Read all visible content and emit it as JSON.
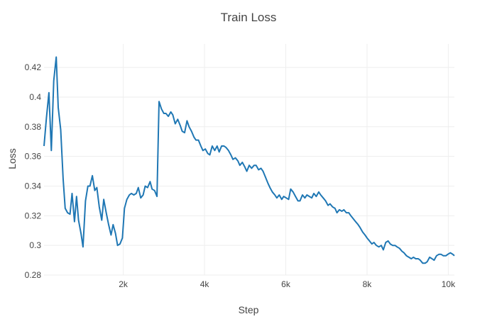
{
  "chart_data": {
    "type": "line",
    "title": "Train Loss",
    "xlabel": "Step",
    "ylabel": "Loss",
    "xlim": [
      50,
      10150
    ],
    "ylim": [
      0.28,
      0.432
    ],
    "grid": true,
    "x_ticks": [
      {
        "value": 2000,
        "label": "2k"
      },
      {
        "value": 4000,
        "label": "4k"
      },
      {
        "value": 6000,
        "label": "6k"
      },
      {
        "value": 8000,
        "label": "8k"
      },
      {
        "value": 10000,
        "label": "10k"
      }
    ],
    "y_ticks": [
      {
        "value": 0.28,
        "label": "0.28"
      },
      {
        "value": 0.3,
        "label": "0.3"
      },
      {
        "value": 0.32,
        "label": "0.32"
      },
      {
        "value": 0.34,
        "label": "0.34"
      },
      {
        "value": 0.36,
        "label": "0.36"
      },
      {
        "value": 0.38,
        "label": "0.38"
      },
      {
        "value": 0.4,
        "label": "0.4"
      },
      {
        "value": 0.42,
        "label": "0.42"
      }
    ],
    "series": [
      {
        "color": "#1f77b4",
        "points": [
          [
            50,
            0.367
          ],
          [
            110,
            0.386
          ],
          [
            170,
            0.403
          ],
          [
            230,
            0.364
          ],
          [
            290,
            0.411
          ],
          [
            350,
            0.427
          ],
          [
            400,
            0.393
          ],
          [
            460,
            0.378
          ],
          [
            520,
            0.345
          ],
          [
            570,
            0.325
          ],
          [
            630,
            0.322
          ],
          [
            690,
            0.321
          ],
          [
            740,
            0.335
          ],
          [
            800,
            0.316
          ],
          [
            850,
            0.333
          ],
          [
            900,
            0.317
          ],
          [
            960,
            0.308
          ],
          [
            1010,
            0.299
          ],
          [
            1070,
            0.33
          ],
          [
            1130,
            0.34
          ],
          [
            1180,
            0.34
          ],
          [
            1240,
            0.347
          ],
          [
            1300,
            0.337
          ],
          [
            1350,
            0.339
          ],
          [
            1410,
            0.326
          ],
          [
            1470,
            0.317
          ],
          [
            1520,
            0.331
          ],
          [
            1580,
            0.322
          ],
          [
            1640,
            0.314
          ],
          [
            1700,
            0.307
          ],
          [
            1750,
            0.314
          ],
          [
            1810,
            0.308
          ],
          [
            1860,
            0.3
          ],
          [
            1920,
            0.301
          ],
          [
            1980,
            0.305
          ],
          [
            2030,
            0.325
          ],
          [
            2090,
            0.331
          ],
          [
            2150,
            0.334
          ],
          [
            2200,
            0.335
          ],
          [
            2260,
            0.334
          ],
          [
            2320,
            0.335
          ],
          [
            2370,
            0.339
          ],
          [
            2430,
            0.332
          ],
          [
            2490,
            0.334
          ],
          [
            2540,
            0.34
          ],
          [
            2600,
            0.339
          ],
          [
            2660,
            0.343
          ],
          [
            2710,
            0.338
          ],
          [
            2770,
            0.337
          ],
          [
            2830,
            0.333
          ],
          [
            2880,
            0.397
          ],
          [
            2940,
            0.392
          ],
          [
            3000,
            0.389
          ],
          [
            3050,
            0.389
          ],
          [
            3110,
            0.387
          ],
          [
            3170,
            0.39
          ],
          [
            3220,
            0.388
          ],
          [
            3280,
            0.382
          ],
          [
            3340,
            0.385
          ],
          [
            3400,
            0.381
          ],
          [
            3450,
            0.377
          ],
          [
            3510,
            0.376
          ],
          [
            3570,
            0.384
          ],
          [
            3620,
            0.38
          ],
          [
            3680,
            0.377
          ],
          [
            3740,
            0.373
          ],
          [
            3790,
            0.371
          ],
          [
            3850,
            0.371
          ],
          [
            3910,
            0.367
          ],
          [
            3960,
            0.364
          ],
          [
            4020,
            0.365
          ],
          [
            4080,
            0.362
          ],
          [
            4130,
            0.361
          ],
          [
            4190,
            0.367
          ],
          [
            4250,
            0.364
          ],
          [
            4310,
            0.367
          ],
          [
            4360,
            0.363
          ],
          [
            4420,
            0.367
          ],
          [
            4480,
            0.367
          ],
          [
            4530,
            0.366
          ],
          [
            4590,
            0.364
          ],
          [
            4650,
            0.361
          ],
          [
            4700,
            0.358
          ],
          [
            4760,
            0.359
          ],
          [
            4820,
            0.357
          ],
          [
            4870,
            0.354
          ],
          [
            4930,
            0.356
          ],
          [
            4990,
            0.353
          ],
          [
            5040,
            0.35
          ],
          [
            5100,
            0.354
          ],
          [
            5160,
            0.352
          ],
          [
            5220,
            0.354
          ],
          [
            5270,
            0.354
          ],
          [
            5330,
            0.351
          ],
          [
            5390,
            0.352
          ],
          [
            5440,
            0.35
          ],
          [
            5500,
            0.346
          ],
          [
            5560,
            0.342
          ],
          [
            5610,
            0.339
          ],
          [
            5670,
            0.336
          ],
          [
            5730,
            0.334
          ],
          [
            5780,
            0.332
          ],
          [
            5840,
            0.334
          ],
          [
            5900,
            0.331
          ],
          [
            5950,
            0.333
          ],
          [
            6010,
            0.332
          ],
          [
            6070,
            0.331
          ],
          [
            6120,
            0.338
          ],
          [
            6180,
            0.336
          ],
          [
            6240,
            0.333
          ],
          [
            6300,
            0.33
          ],
          [
            6350,
            0.33
          ],
          [
            6410,
            0.334
          ],
          [
            6470,
            0.332
          ],
          [
            6520,
            0.334
          ],
          [
            6580,
            0.333
          ],
          [
            6640,
            0.332
          ],
          [
            6690,
            0.335
          ],
          [
            6750,
            0.333
          ],
          [
            6810,
            0.336
          ],
          [
            6860,
            0.334
          ],
          [
            6920,
            0.332
          ],
          [
            6980,
            0.33
          ],
          [
            7040,
            0.327
          ],
          [
            7090,
            0.328
          ],
          [
            7150,
            0.326
          ],
          [
            7210,
            0.325
          ],
          [
            7260,
            0.322
          ],
          [
            7320,
            0.324
          ],
          [
            7380,
            0.323
          ],
          [
            7430,
            0.324
          ],
          [
            7490,
            0.322
          ],
          [
            7550,
            0.322
          ],
          [
            7600,
            0.32
          ],
          [
            7660,
            0.318
          ],
          [
            7720,
            0.316
          ],
          [
            7780,
            0.314
          ],
          [
            7830,
            0.312
          ],
          [
            7890,
            0.309
          ],
          [
            7950,
            0.307
          ],
          [
            8000,
            0.305
          ],
          [
            8060,
            0.303
          ],
          [
            8120,
            0.301
          ],
          [
            8170,
            0.302
          ],
          [
            8230,
            0.3
          ],
          [
            8290,
            0.299
          ],
          [
            8350,
            0.3
          ],
          [
            8400,
            0.297
          ],
          [
            8460,
            0.302
          ],
          [
            8520,
            0.303
          ],
          [
            8570,
            0.301
          ],
          [
            8630,
            0.3
          ],
          [
            8690,
            0.3
          ],
          [
            8740,
            0.299
          ],
          [
            8800,
            0.298
          ],
          [
            8860,
            0.296
          ],
          [
            8910,
            0.295
          ],
          [
            8970,
            0.293
          ],
          [
            9030,
            0.292
          ],
          [
            9090,
            0.291
          ],
          [
            9140,
            0.292
          ],
          [
            9200,
            0.291
          ],
          [
            9260,
            0.291
          ],
          [
            9310,
            0.29
          ],
          [
            9370,
            0.288
          ],
          [
            9430,
            0.288
          ],
          [
            9480,
            0.289
          ],
          [
            9540,
            0.292
          ],
          [
            9600,
            0.291
          ],
          [
            9650,
            0.29
          ],
          [
            9710,
            0.293
          ],
          [
            9770,
            0.294
          ],
          [
            9820,
            0.294
          ],
          [
            9880,
            0.293
          ],
          [
            9940,
            0.293
          ],
          [
            9990,
            0.294
          ],
          [
            10050,
            0.295
          ],
          [
            10110,
            0.294
          ],
          [
            10150,
            0.293
          ]
        ]
      }
    ]
  }
}
